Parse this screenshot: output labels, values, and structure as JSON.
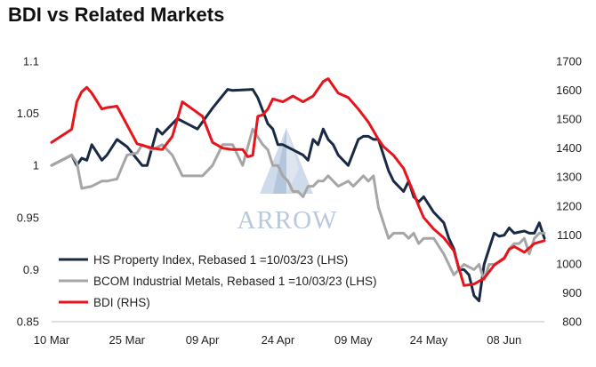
{
  "chart_data": {
    "type": "line",
    "title": "BDI vs Related Markets",
    "watermark": "ARROW",
    "x_tick_labels": [
      "10 Mar",
      "25 Mar",
      "09 Apr",
      "24 Apr",
      "09 May",
      "24 May",
      "08 Jun"
    ],
    "y_left": {
      "lim": [
        0.85,
        1.1
      ],
      "ticks": [
        "0.85",
        "0.9",
        "0.95",
        "1",
        "1.05",
        "1.1"
      ]
    },
    "y_right": {
      "lim": [
        800,
        1700
      ],
      "ticks": [
        "800",
        "900",
        "1000",
        "1100",
        "1200",
        "1300",
        "1400",
        "1500",
        "1600",
        "1700"
      ]
    },
    "x_range": [
      0,
      98
    ],
    "legend_position": "bottom-left",
    "grid": false,
    "series": [
      {
        "name": "HS Property Index, Rebased 1 =10/03/23 (LHS)",
        "axis": "left",
        "color": "#1a2a44",
        "x": [
          0,
          4,
          5,
          6,
          7,
          8,
          10,
          11,
          13,
          15,
          18,
          19,
          21,
          22,
          23,
          25,
          27,
          29,
          32,
          35,
          36,
          40,
          41,
          43,
          44,
          45,
          46,
          48,
          50,
          51,
          52,
          53,
          54,
          55,
          56,
          57,
          59,
          61,
          62,
          63,
          64,
          65,
          67,
          68,
          70,
          71,
          72,
          73,
          74,
          76,
          78,
          79,
          80,
          81,
          82,
          83,
          84,
          85,
          86,
          87,
          88,
          89,
          90,
          91,
          92,
          94,
          95,
          96,
          97,
          98
        ],
        "y": [
          1.0,
          1.01,
          1.0,
          1.007,
          1.005,
          1.02,
          1.005,
          1.01,
          1.025,
          1.018,
          1.0,
          1.0,
          1.035,
          1.03,
          1.035,
          1.045,
          1.04,
          1.035,
          1.055,
          1.073,
          1.072,
          1.073,
          1.065,
          1.04,
          1.035,
          1.02,
          1.02,
          1.015,
          1.01,
          1.005,
          1.025,
          1.02,
          1.035,
          1.025,
          1.02,
          1.01,
          1.0,
          1.025,
          1.028,
          1.028,
          1.025,
          1.025,
          0.995,
          0.985,
          0.975,
          0.985,
          0.97,
          0.965,
          0.97,
          0.955,
          0.945,
          0.93,
          0.92,
          0.9,
          0.9,
          0.895,
          0.875,
          0.87,
          0.905,
          0.92,
          0.935,
          0.932,
          0.933,
          0.94,
          0.935,
          0.937,
          0.935,
          0.935,
          0.945,
          0.93
        ]
      },
      {
        "name": "BCOM Industrial Metals, Rebased 1 =10/03/23 (LHS)",
        "axis": "left",
        "color": "#a6a6a6",
        "x": [
          0,
          4,
          5,
          6,
          8,
          10,
          11,
          13,
          15,
          17,
          18,
          20,
          22,
          24,
          26,
          28,
          30,
          32,
          34,
          36,
          38,
          40,
          42,
          43,
          44,
          45,
          46,
          47,
          48,
          49,
          50,
          51,
          52,
          53,
          54,
          55,
          57,
          59,
          60,
          62,
          63,
          64,
          65,
          67,
          68,
          70,
          71,
          72,
          73,
          74,
          76,
          78,
          80,
          82,
          84,
          85,
          86,
          87,
          88,
          90,
          91,
          92,
          93,
          94,
          95,
          96,
          97,
          98
        ],
        "y": [
          1.0,
          1.01,
          1.003,
          0.978,
          0.98,
          0.985,
          0.985,
          0.987,
          1.01,
          1.012,
          1.02,
          1.015,
          1.02,
          1.01,
          0.99,
          0.99,
          0.99,
          1.0,
          1.02,
          1.02,
          1.0,
          1.035,
          1.02,
          1.015,
          1.0,
          1.0,
          0.99,
          0.985,
          0.975,
          0.975,
          0.97,
          0.98,
          0.98,
          0.985,
          0.985,
          0.99,
          0.98,
          0.985,
          0.98,
          0.99,
          0.985,
          0.99,
          0.96,
          0.93,
          0.935,
          0.935,
          0.93,
          0.935,
          0.925,
          0.93,
          0.93,
          0.915,
          0.895,
          0.905,
          0.9,
          0.905,
          0.89,
          0.905,
          0.905,
          0.91,
          0.92,
          0.925,
          0.925,
          0.93,
          0.915,
          0.93,
          0.935,
          0.935
        ]
      },
      {
        "name": "BDI (RHS)",
        "axis": "right",
        "color": "#e8141b",
        "x": [
          0,
          4,
          5,
          6,
          7,
          8,
          10,
          11,
          13,
          15,
          17,
          18,
          20,
          22,
          24,
          26,
          28,
          30,
          32,
          34,
          36,
          38,
          39,
          40,
          41,
          42,
          43,
          44,
          46,
          48,
          49,
          50,
          51,
          52,
          54,
          55,
          57,
          59,
          61,
          63,
          65,
          66,
          68,
          70,
          72,
          73,
          74,
          76,
          78,
          80,
          82,
          84,
          86,
          88,
          90,
          91,
          92,
          93,
          94,
          96,
          98
        ],
        "y": [
          1420,
          1465,
          1560,
          1595,
          1610,
          1590,
          1535,
          1540,
          1545,
          1480,
          1415,
          1410,
          1400,
          1395,
          1440,
          1560,
          1535,
          1510,
          1420,
          1400,
          1395,
          1395,
          1370,
          1375,
          1510,
          1515,
          1535,
          1570,
          1560,
          1580,
          1570,
          1560,
          1570,
          1580,
          1630,
          1640,
          1590,
          1575,
          1535,
          1490,
          1430,
          1405,
          1375,
          1330,
          1245,
          1200,
          1160,
          1120,
          1090,
          1045,
          925,
          930,
          950,
          995,
          1020,
          1050,
          1060,
          1050,
          1040,
          1070,
          1080
        ]
      }
    ]
  }
}
